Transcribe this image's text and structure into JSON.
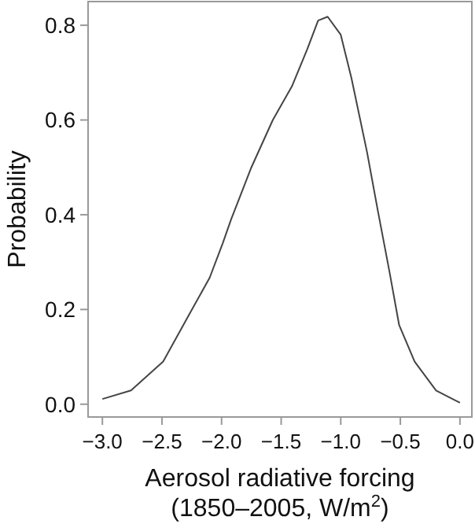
{
  "chart_data": {
    "type": "line",
    "xlabel": "Aerosol radiative forcing\n(1850–2005, W/m$^{2}$)",
    "ylabel": "Probability",
    "x": [
      -3.0,
      -2.76,
      -2.49,
      -2.27,
      -2.1,
      -1.99,
      -1.92,
      -1.75,
      -1.57,
      -1.41,
      -1.28,
      -1.19,
      -1.11,
      -1.0,
      -0.91,
      -0.78,
      -0.69,
      -0.59,
      -0.51,
      -0.38,
      -0.2,
      0.0
    ],
    "series": [
      {
        "color": "#444444",
        "values": [
          0.011,
          0.029,
          0.09,
          0.19,
          0.267,
          0.34,
          0.39,
          0.5,
          0.6,
          0.671,
          0.75,
          0.81,
          0.818,
          0.78,
          0.688,
          0.533,
          0.41,
          0.278,
          0.167,
          0.09,
          0.029,
          0.003
        ]
      }
    ],
    "xlim": [
      -3.12,
      0.1
    ],
    "ylim": [
      -0.027,
      0.85
    ],
    "xticks": [
      {
        "value": -3,
        "label": "−3.0"
      },
      {
        "value": -2.5,
        "label": "−2.5"
      },
      {
        "value": -2,
        "label": "−2.0"
      },
      {
        "value": -1.5,
        "label": "−1.5"
      },
      {
        "value": -1,
        "label": "−1.0"
      },
      {
        "value": -0.5,
        "label": "−0.5"
      },
      {
        "value": 0,
        "label": "0.0"
      }
    ],
    "yticks": [
      {
        "value": 0,
        "label": "0.0"
      },
      {
        "value": 0.2,
        "label": "0.2"
      },
      {
        "value": 0.4,
        "label": "0.4"
      },
      {
        "value": 0.6,
        "label": "0.6"
      },
      {
        "value": 0.8,
        "label": "0.8"
      }
    ],
    "grid": false,
    "line_style": "solid",
    "marker": "none"
  }
}
